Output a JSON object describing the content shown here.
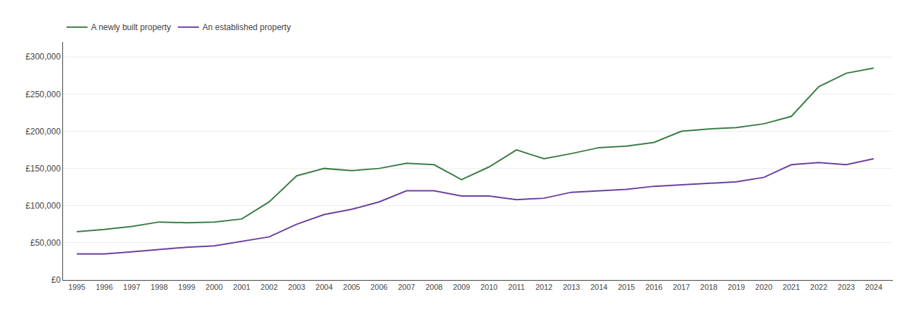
{
  "chart_data": {
    "type": "line",
    "x": [
      1995,
      1996,
      1997,
      1998,
      1999,
      2000,
      2001,
      2002,
      2003,
      2004,
      2005,
      2006,
      2007,
      2008,
      2009,
      2010,
      2011,
      2012,
      2013,
      2014,
      2015,
      2016,
      2017,
      2018,
      2019,
      2020,
      2021,
      2022,
      2023,
      2024
    ],
    "series": [
      {
        "name": "A newly built property",
        "color": "#3a7d44",
        "values": [
          65000,
          68000,
          72000,
          78000,
          77000,
          78000,
          82000,
          105000,
          140000,
          150000,
          147000,
          150000,
          157000,
          155000,
          135000,
          152000,
          175000,
          163000,
          170000,
          178000,
          180000,
          185000,
          200000,
          203000,
          205000,
          210000,
          220000,
          260000,
          278000,
          285000
        ]
      },
      {
        "name": "An established property",
        "color": "#6b3fa0",
        "values": [
          35000,
          35000,
          38000,
          41000,
          44000,
          46000,
          52000,
          58000,
          75000,
          88000,
          95000,
          105000,
          120000,
          120000,
          113000,
          113000,
          108000,
          110000,
          118000,
          120000,
          122000,
          126000,
          128000,
          130000,
          132000,
          138000,
          155000,
          158000,
          155000,
          163000
        ]
      }
    ],
    "xlim": [
      1994.5,
      2024.7
    ],
    "xticks": [
      1995,
      1996,
      1997,
      1998,
      1999,
      2000,
      2001,
      2002,
      2003,
      2004,
      2005,
      2006,
      2007,
      2008,
      2009,
      2010,
      2011,
      2012,
      2013,
      2014,
      2015,
      2016,
      2017,
      2018,
      2019,
      2020,
      2021,
      2022,
      2023,
      2024
    ],
    "ylim": [
      0,
      320000
    ],
    "yticks": [
      {
        "value": 0,
        "label": "£0"
      },
      {
        "value": 50000,
        "label": "£50,000"
      },
      {
        "value": 100000,
        "label": "£100,000"
      },
      {
        "value": 150000,
        "label": "£150,000"
      },
      {
        "value": 200000,
        "label": "£200,000"
      },
      {
        "value": 250000,
        "label": "£250,000"
      },
      {
        "value": 300000,
        "label": "£300,000"
      }
    ],
    "grid": true,
    "legend": "upper left"
  }
}
